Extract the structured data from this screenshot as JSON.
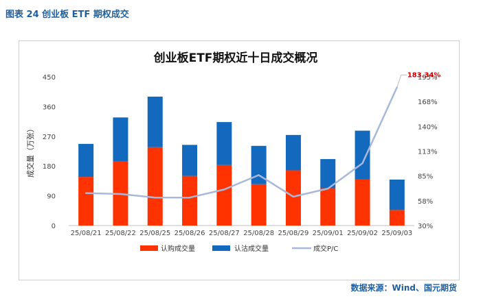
{
  "figure_label": "图表 24 创业板 ETF 期权成交",
  "source": "数据来源：Wind、国元期货",
  "chart_data": {
    "type": "bar",
    "title": "创业板ETF期权近十日成交概况",
    "ylabel": "成交量（万张）",
    "categories": [
      "25/08/21",
      "25/08/22",
      "25/08/25",
      "25/08/26",
      "25/08/27",
      "25/08/28",
      "25/08/29",
      "25/09/01",
      "25/09/02",
      "25/09/03"
    ],
    "ylim": [
      0,
      450
    ],
    "yticks": [
      "0",
      "90",
      "180",
      "270",
      "360",
      "450"
    ],
    "y2lim": [
      30,
      195
    ],
    "y2ticks": [
      "30%",
      "58%",
      "85%",
      "113%",
      "140%",
      "168%",
      "195%"
    ],
    "stacked": true,
    "series": [
      {
        "name": "认购成交量",
        "type": "bar",
        "axis": "left",
        "color": "#ff3300",
        "values": [
          147,
          195,
          237,
          150,
          183,
          125,
          167,
          113,
          140,
          47
        ]
      },
      {
        "name": "认沽成交量",
        "type": "bar",
        "axis": "left",
        "color": "#1369be",
        "values": [
          100,
          132,
          153,
          94,
          130,
          116,
          107,
          88,
          147,
          92
        ]
      },
      {
        "name": "成交P/C",
        "type": "line",
        "axis": "right",
        "color": "#a8b8dc",
        "values": [
          66,
          65,
          61,
          61,
          70,
          86,
          62,
          71,
          99,
          183.34
        ]
      }
    ],
    "annotation": {
      "text": "183.34%",
      "color": "#cc0000"
    },
    "grid": false,
    "legend": "bottom"
  }
}
